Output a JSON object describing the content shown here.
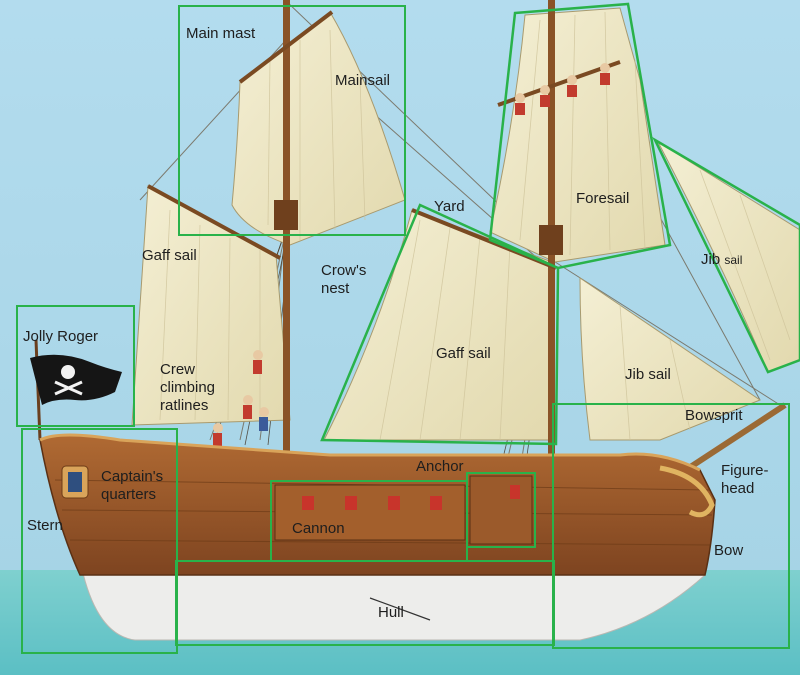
{
  "labels": {
    "main_mast": "Main mast",
    "mainsail": "Mainsail",
    "yard": "Yard",
    "foresail": "Foresail",
    "gaff_sail_left": "Gaff sail",
    "crows_nest_1": "Crow's",
    "crows_nest_2": "nest",
    "jib_sail_upper": "Jib",
    "jib_sail_upper_suffix": "sail",
    "jolly_roger": "Jolly Roger",
    "gaff_sail_center": "Gaff sail",
    "crew_1": "Crew",
    "crew_2": "climbing",
    "crew_3": "ratlines",
    "jib_sail_lower": "Jib sail",
    "bowsprit": "Bowsprit",
    "anchor": "Anchor",
    "captains_1": "Captain's",
    "captains_2": "quarters",
    "figurehead_1": "Figure-",
    "figurehead_2": "head",
    "stern": "Stern",
    "cannon": "Cannon",
    "bow": "Bow",
    "hull": "Hull"
  },
  "colors": {
    "highlight_box": "#29b24a",
    "sky": "#a9d6ea",
    "sea": "#6cc8c9",
    "sail": "#efe8c7",
    "hull_wood": "#9b5a2b",
    "hull_bottom": "#ececea"
  }
}
